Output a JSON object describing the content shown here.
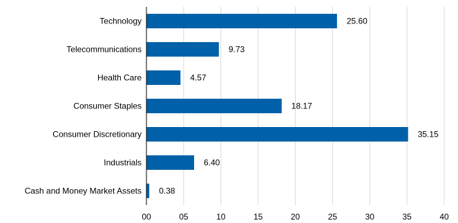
{
  "chart_data": {
    "type": "bar",
    "orientation": "horizontal",
    "categories": [
      "Technology",
      "Telecommunications",
      "Health Care",
      "Consumer Staples",
      "Consumer Discretionary",
      "Industrials",
      "Cash and Money Market Assets"
    ],
    "values": [
      25.6,
      9.73,
      4.57,
      18.17,
      35.15,
      6.4,
      0.38
    ],
    "value_labels": [
      "25.60",
      "9.73",
      "4.57",
      "18.17",
      "35.15",
      "6.40",
      "0.38"
    ],
    "xlim": [
      0,
      40
    ],
    "xticks": [
      0,
      5,
      10,
      15,
      20,
      25,
      30,
      35,
      40
    ],
    "xtick_labels": [
      "00",
      "05",
      "10",
      "15",
      "20",
      "25",
      "30",
      "35",
      "40"
    ],
    "grid": true,
    "bar_color": "#0061a8",
    "title": "",
    "xlabel": "",
    "ylabel": ""
  }
}
